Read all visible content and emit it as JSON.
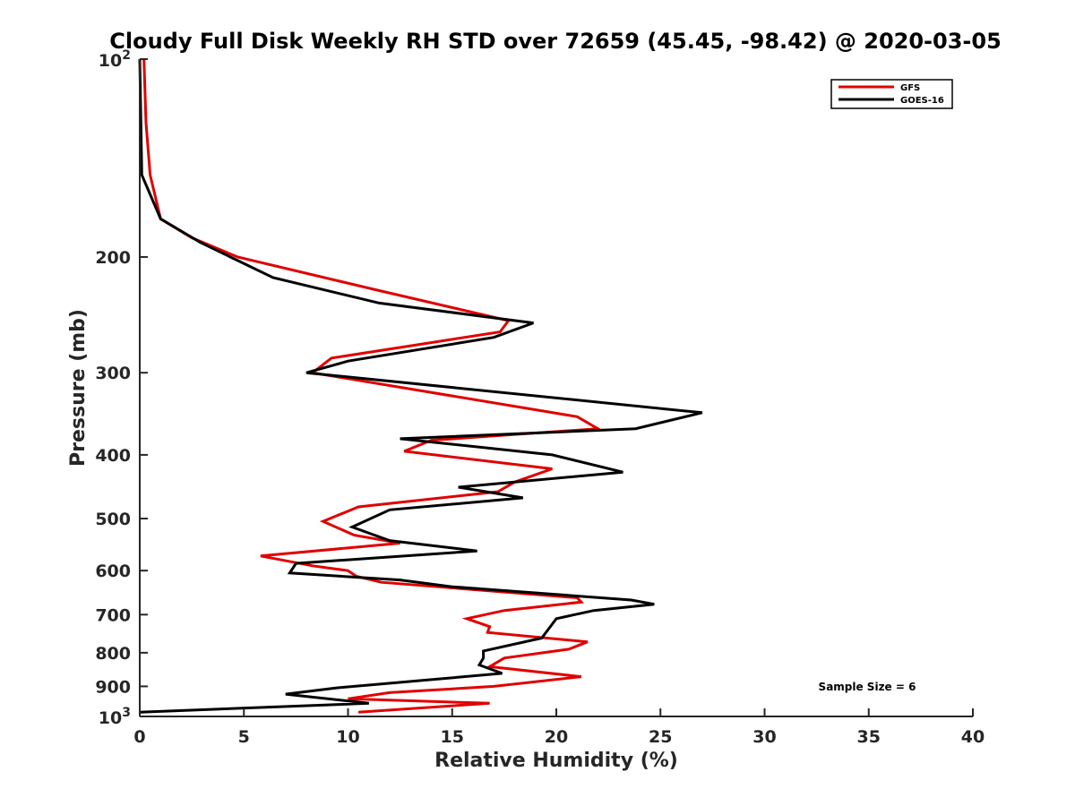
{
  "chart_data": {
    "type": "line",
    "title": "Cloudy Full Disk Weekly RH STD over 72659 (45.45, -98.42) @ 2020-03-05",
    "xlabel": "Relative Humidity (%)",
    "ylabel": "Pressure (mb)",
    "xlim": [
      0,
      40
    ],
    "ylim": [
      100,
      1000
    ],
    "y_scale": "log",
    "y_reversed": true,
    "grid": false,
    "legend_position": "top-right",
    "annotation": "Sample Size = 6",
    "x_ticks": [
      "0",
      "5",
      "10",
      "15",
      "20",
      "25",
      "30",
      "35",
      "40"
    ],
    "y_ticks": [
      {
        "value": 200,
        "label": "200"
      },
      {
        "value": 300,
        "label": "300"
      },
      {
        "value": 400,
        "label": "400"
      },
      {
        "value": 500,
        "label": "500"
      },
      {
        "value": 600,
        "label": "600"
      },
      {
        "value": 700,
        "label": "700"
      },
      {
        "value": 800,
        "label": "800"
      },
      {
        "value": 900,
        "label": "900"
      }
    ],
    "y_end_ticks": [
      {
        "value": 100,
        "base": "10",
        "exp": "2"
      },
      {
        "value": 1000,
        "base": "10",
        "exp": "3"
      }
    ],
    "series": [
      {
        "name": "GFS",
        "color": "#e00000",
        "points": [
          [
            0.2,
            100
          ],
          [
            0.3,
            125
          ],
          [
            0.5,
            150
          ],
          [
            1.0,
            175
          ],
          [
            2.5,
            187
          ],
          [
            4.7,
            200
          ],
          [
            11.5,
            225
          ],
          [
            17.7,
            250
          ],
          [
            17.3,
            260
          ],
          [
            9.2,
            285
          ],
          [
            8.3,
            300
          ],
          [
            21.0,
            350
          ],
          [
            22.0,
            365
          ],
          [
            14.0,
            380
          ],
          [
            12.7,
            395
          ],
          [
            19.8,
            420
          ],
          [
            18.0,
            440
          ],
          [
            17.2,
            455
          ],
          [
            10.5,
            480
          ],
          [
            8.8,
            505
          ],
          [
            10.3,
            530
          ],
          [
            12.5,
            545
          ],
          [
            5.8,
            570
          ],
          [
            8.3,
            590
          ],
          [
            10.0,
            600
          ],
          [
            10.4,
            612
          ],
          [
            11.6,
            625
          ],
          [
            21.0,
            660
          ],
          [
            21.2,
            670
          ],
          [
            17.5,
            690
          ],
          [
            15.7,
            710
          ],
          [
            16.8,
            730
          ],
          [
            16.7,
            745
          ],
          [
            21.5,
            770
          ],
          [
            20.6,
            790
          ],
          [
            17.5,
            815
          ],
          [
            16.8,
            840
          ],
          [
            21.2,
            870
          ],
          [
            17.0,
            900
          ],
          [
            12.0,
            920
          ],
          [
            10.0,
            940
          ],
          [
            16.8,
            955
          ],
          [
            10.5,
            985
          ]
        ]
      },
      {
        "name": "GOES-16",
        "color": "#000000",
        "points": [
          [
            0.0,
            100
          ],
          [
            0.1,
            150
          ],
          [
            1.0,
            175
          ],
          [
            2.9,
            190
          ],
          [
            6.4,
            215
          ],
          [
            11.5,
            235
          ],
          [
            18.9,
            252
          ],
          [
            17.0,
            265
          ],
          [
            10.0,
            288
          ],
          [
            8.0,
            300
          ],
          [
            27.0,
            345
          ],
          [
            23.8,
            365
          ],
          [
            12.5,
            378
          ],
          [
            19.8,
            400
          ],
          [
            23.2,
            425
          ],
          [
            15.3,
            448
          ],
          [
            18.4,
            465
          ],
          [
            12.0,
            485
          ],
          [
            10.2,
            515
          ],
          [
            12.0,
            540
          ],
          [
            16.2,
            560
          ],
          [
            7.5,
            585
          ],
          [
            7.2,
            605
          ],
          [
            12.5,
            620
          ],
          [
            15.0,
            635
          ],
          [
            23.6,
            665
          ],
          [
            24.7,
            675
          ],
          [
            21.8,
            690
          ],
          [
            20.0,
            710
          ],
          [
            19.3,
            760
          ],
          [
            16.5,
            795
          ],
          [
            16.5,
            815
          ],
          [
            16.3,
            835
          ],
          [
            17.4,
            860
          ],
          [
            13.8,
            880
          ],
          [
            9.4,
            905
          ],
          [
            7.0,
            925
          ],
          [
            11.0,
            955
          ],
          [
            0.0,
            985
          ]
        ]
      }
    ]
  }
}
